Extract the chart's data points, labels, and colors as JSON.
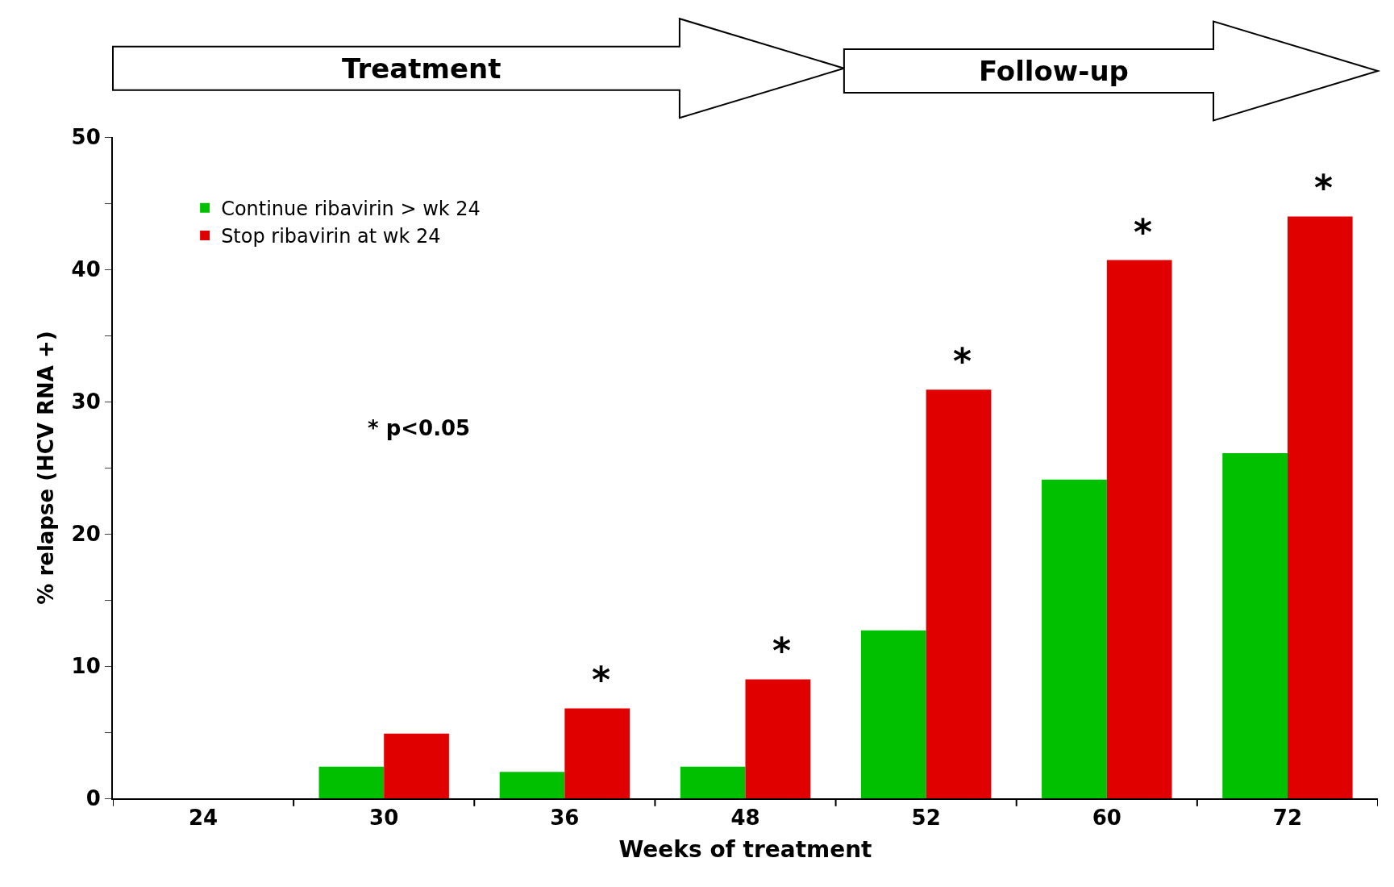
{
  "chart_data": {
    "type": "bar",
    "title": null,
    "xlabel": "Weeks of treatment",
    "ylabel": "% relapse (HCV RNA +)",
    "categories": [
      "24",
      "30",
      "36",
      "48",
      "52",
      "60",
      "72"
    ],
    "series": [
      {
        "name": "Continue ribavirin > wk 24",
        "color": "#00c000",
        "values": [
          0,
          2.4,
          2.0,
          2.4,
          12.7,
          24.1,
          26.1
        ]
      },
      {
        "name": "Stop ribavirin at wk 24",
        "color": "#e00000",
        "values": [
          0,
          4.9,
          6.8,
          9.0,
          30.9,
          40.7,
          44.0
        ]
      }
    ],
    "ylim": [
      0,
      50
    ],
    "yticks": [
      0,
      {
        "value": 5,
        "label": null
      },
      10,
      {
        "value": 15,
        "label": null
      },
      20,
      {
        "value": 25,
        "label": null
      },
      30,
      {
        "value": 35,
        "label": null
      },
      40,
      {
        "value": 45,
        "label": null
      },
      50
    ],
    "legend": "top left",
    "annotations": [
      {
        "text": "*",
        "x": "36",
        "y": 6.8
      },
      {
        "text": "*",
        "x": "48",
        "y": 9.0
      },
      {
        "text": "*",
        "x": "52",
        "y": 30.9
      },
      {
        "text": "*",
        "x": "60",
        "y": 40.7
      },
      {
        "text": "*",
        "x": "72",
        "y": 44.0
      },
      "* p<0.05",
      "Treatment",
      "Follow-up"
    ]
  }
}
